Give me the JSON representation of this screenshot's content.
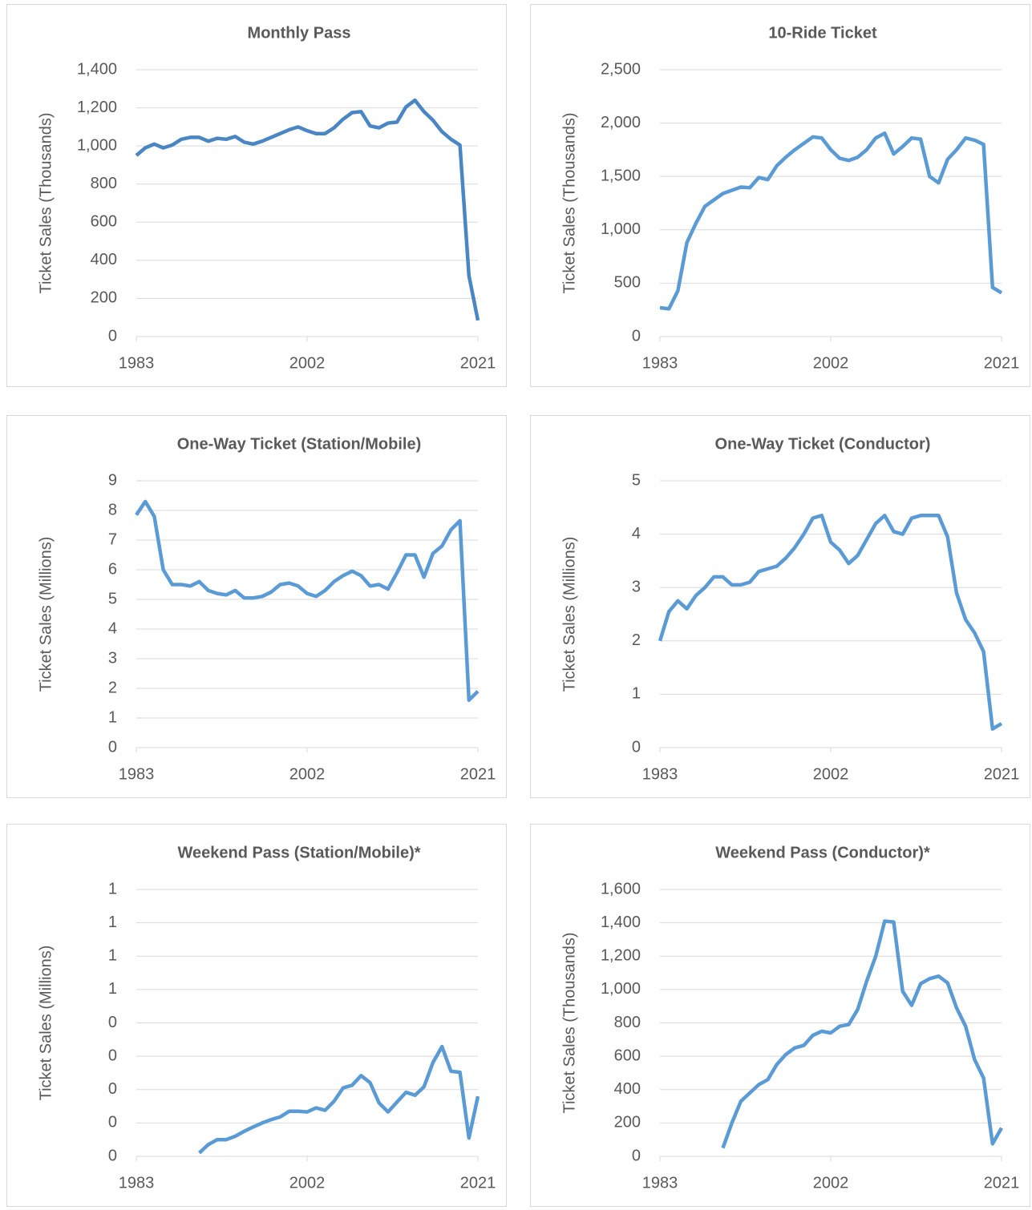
{
  "chart_data": [
    {
      "type": "line",
      "title": "Monthly Pass",
      "y_label": "Ticket Sales (Thousands)",
      "color": "#4a86c4",
      "x": [
        1983,
        1984,
        1985,
        1986,
        1987,
        1988,
        1989,
        1990,
        1991,
        1992,
        1993,
        1994,
        1995,
        1996,
        1997,
        1998,
        1999,
        2000,
        2001,
        2002,
        2003,
        2004,
        2005,
        2006,
        2007,
        2008,
        2009,
        2010,
        2011,
        2012,
        2013,
        2014,
        2015,
        2016,
        2017,
        2018,
        2019,
        2020,
        2021
      ],
      "values": [
        950,
        990,
        1010,
        990,
        1005,
        1035,
        1045,
        1045,
        1025,
        1040,
        1035,
        1050,
        1020,
        1010,
        1025,
        1045,
        1065,
        1085,
        1100,
        1080,
        1065,
        1065,
        1095,
        1140,
        1175,
        1180,
        1105,
        1095,
        1120,
        1125,
        1205,
        1240,
        1180,
        1135,
        1075,
        1035,
        1005,
        320,
        85
      ],
      "xlim": [
        1983,
        2021
      ],
      "xticks": [
        1983,
        2002,
        2021
      ],
      "ylim": [
        0,
        1400
      ],
      "yticks": [
        0,
        200,
        400,
        600,
        800,
        {
          "value": 1000,
          "label": "1,000"
        },
        {
          "value": 1200,
          "label": "1,200"
        },
        {
          "value": 1400,
          "label": "1,400"
        }
      ],
      "grid": true
    },
    {
      "type": "line",
      "title": "10-Ride Ticket",
      "y_label": "Ticket Sales (Thousands)",
      "color": "#5b9bd5",
      "x": [
        1983,
        1984,
        1985,
        1986,
        1987,
        1988,
        1989,
        1990,
        1991,
        1992,
        1993,
        1994,
        1995,
        1996,
        1997,
        1998,
        1999,
        2000,
        2001,
        2002,
        2003,
        2004,
        2005,
        2006,
        2007,
        2008,
        2009,
        2010,
        2011,
        2012,
        2013,
        2014,
        2015,
        2016,
        2017,
        2018,
        2019,
        2020,
        2021
      ],
      "values": [
        270,
        260,
        430,
        880,
        1060,
        1220,
        1280,
        1340,
        1370,
        1400,
        1395,
        1490,
        1470,
        1600,
        1680,
        1750,
        1810,
        1870,
        1860,
        1750,
        1670,
        1650,
        1680,
        1750,
        1860,
        1905,
        1710,
        1780,
        1860,
        1850,
        1500,
        1440,
        1660,
        1750,
        1860,
        1840,
        1800,
        460,
        410
      ],
      "xlim": [
        1983,
        2021
      ],
      "xticks": [
        1983,
        2002,
        2021
      ],
      "ylim": [
        0,
        2500
      ],
      "yticks": [
        0,
        500,
        {
          "value": 1000,
          "label": "1,000"
        },
        {
          "value": 1500,
          "label": "1,500"
        },
        {
          "value": 2000,
          "label": "2,000"
        },
        {
          "value": 2500,
          "label": "2,500"
        }
      ],
      "grid": true
    },
    {
      "type": "line",
      "title": "One-Way Ticket (Station/Mobile)",
      "y_label": "Ticket Sales (Millions)",
      "color": "#5b9bd5",
      "x": [
        1983,
        1984,
        1985,
        1986,
        1987,
        1988,
        1989,
        1990,
        1991,
        1992,
        1993,
        1994,
        1995,
        1996,
        1997,
        1998,
        1999,
        2000,
        2001,
        2002,
        2003,
        2004,
        2005,
        2006,
        2007,
        2008,
        2009,
        2010,
        2011,
        2012,
        2013,
        2014,
        2015,
        2016,
        2017,
        2018,
        2019,
        2020,
        2021
      ],
      "values": [
        7.85,
        8.3,
        7.8,
        6.0,
        5.5,
        5.5,
        5.45,
        5.6,
        5.3,
        5.2,
        5.15,
        5.3,
        5.05,
        5.05,
        5.1,
        5.25,
        5.5,
        5.55,
        5.45,
        5.2,
        5.1,
        5.3,
        5.6,
        5.8,
        5.95,
        5.8,
        5.45,
        5.5,
        5.35,
        5.9,
        6.5,
        6.5,
        5.75,
        6.55,
        6.8,
        7.35,
        7.65,
        1.6,
        1.9
      ],
      "xlim": [
        1983,
        2021
      ],
      "xticks": [
        1983,
        2002,
        2021
      ],
      "ylim": [
        0,
        9
      ],
      "yticks": [
        0,
        1,
        2,
        3,
        4,
        5,
        6,
        7,
        8,
        9
      ],
      "grid": true
    },
    {
      "type": "line",
      "title": "One-Way Ticket (Conductor)",
      "y_label": "Ticket Sales (Millions)",
      "color": "#5b9bd5",
      "x": [
        1983,
        1984,
        1985,
        1986,
        1987,
        1988,
        1989,
        1990,
        1991,
        1992,
        1993,
        1994,
        1995,
        1996,
        1997,
        1998,
        1999,
        2000,
        2001,
        2002,
        2003,
        2004,
        2005,
        2006,
        2007,
        2008,
        2009,
        2010,
        2011,
        2012,
        2013,
        2014,
        2015,
        2016,
        2017,
        2018,
        2019,
        2020,
        2021
      ],
      "values": [
        2.0,
        2.55,
        2.75,
        2.6,
        2.85,
        3.0,
        3.2,
        3.2,
        3.05,
        3.05,
        3.1,
        3.3,
        3.35,
        3.4,
        3.55,
        3.75,
        4.0,
        4.3,
        4.35,
        3.85,
        3.7,
        3.45,
        3.6,
        3.9,
        4.2,
        4.35,
        4.05,
        4.0,
        4.3,
        4.35,
        4.35,
        4.35,
        3.95,
        2.9,
        2.4,
        2.15,
        1.8,
        0.35,
        0.45
      ],
      "xlim": [
        1983,
        2021
      ],
      "xticks": [
        1983,
        2002,
        2021
      ],
      "ylim": [
        0,
        5
      ],
      "yticks": [
        0,
        1,
        2,
        3,
        4,
        5
      ],
      "grid": true
    },
    {
      "type": "line",
      "title": "Weekend Pass (Station/Mobile)*",
      "y_label": "Ticket Sales (Millions)",
      "color": "#5b9bd5",
      "x": [
        1983,
        1984,
        1985,
        1986,
        1987,
        1988,
        1989,
        1990,
        1991,
        1992,
        1993,
        1994,
        1995,
        1996,
        1997,
        1998,
        1999,
        2000,
        2001,
        2002,
        2003,
        2004,
        2005,
        2006,
        2007,
        2008,
        2009,
        2010,
        2011,
        2012,
        2013,
        2014,
        2015,
        2016,
        2017,
        2018,
        2019,
        2020,
        2021
      ],
      "values": [
        null,
        null,
        null,
        null,
        null,
        null,
        null,
        0.01,
        0.035,
        0.05,
        0.05,
        0.06,
        0.075,
        0.088,
        0.1,
        0.11,
        0.118,
        0.135,
        0.135,
        0.133,
        0.145,
        0.138,
        0.165,
        0.205,
        0.213,
        0.242,
        0.221,
        0.16,
        0.133,
        0.163,
        0.192,
        0.183,
        0.208,
        0.281,
        0.329,
        0.255,
        0.252,
        0.055,
        0.18
      ],
      "xlim": [
        1983,
        2021
      ],
      "xticks": [
        1983,
        2002,
        2021
      ],
      "ylim": [
        0,
        0.8
      ],
      "yticks": [
        0,
        {
          "value": 0.1,
          "label": "0"
        },
        {
          "value": 0.2,
          "label": "0"
        },
        {
          "value": 0.3,
          "label": "0"
        },
        {
          "value": 0.4,
          "label": "0"
        },
        {
          "value": 0.5,
          "label": "1"
        },
        {
          "value": 0.6,
          "label": "1"
        },
        {
          "value": 0.7,
          "label": "1"
        },
        {
          "value": 0.8,
          "label": "1"
        }
      ],
      "grid": true
    },
    {
      "type": "line",
      "title": "Weekend Pass (Conductor)*",
      "y_label": "Ticket Sales (Thousands)",
      "color": "#5b9bd5",
      "x": [
        1983,
        1984,
        1985,
        1986,
        1987,
        1988,
        1989,
        1990,
        1991,
        1992,
        1993,
        1994,
        1995,
        1996,
        1997,
        1998,
        1999,
        2000,
        2001,
        2002,
        2003,
        2004,
        2005,
        2006,
        2007,
        2008,
        2009,
        2010,
        2011,
        2012,
        2013,
        2014,
        2015,
        2016,
        2017,
        2018,
        2019,
        2020,
        2021
      ],
      "values": [
        null,
        null,
        null,
        null,
        null,
        null,
        null,
        50,
        200,
        330,
        380,
        430,
        460,
        550,
        610,
        650,
        665,
        725,
        750,
        740,
        780,
        790,
        880,
        1050,
        1200,
        1410,
        1405,
        990,
        905,
        1035,
        1065,
        1080,
        1040,
        890,
        780,
        580,
        470,
        75,
        170
      ],
      "xlim": [
        1983,
        2021
      ],
      "xticks": [
        1983,
        2002,
        2021
      ],
      "ylim": [
        0,
        1600
      ],
      "yticks": [
        0,
        200,
        400,
        600,
        800,
        {
          "value": 1000,
          "label": "1,000"
        },
        {
          "value": 1200,
          "label": "1,200"
        },
        {
          "value": 1400,
          "label": "1,400"
        },
        {
          "value": 1600,
          "label": "1,600"
        }
      ],
      "grid": true
    }
  ]
}
